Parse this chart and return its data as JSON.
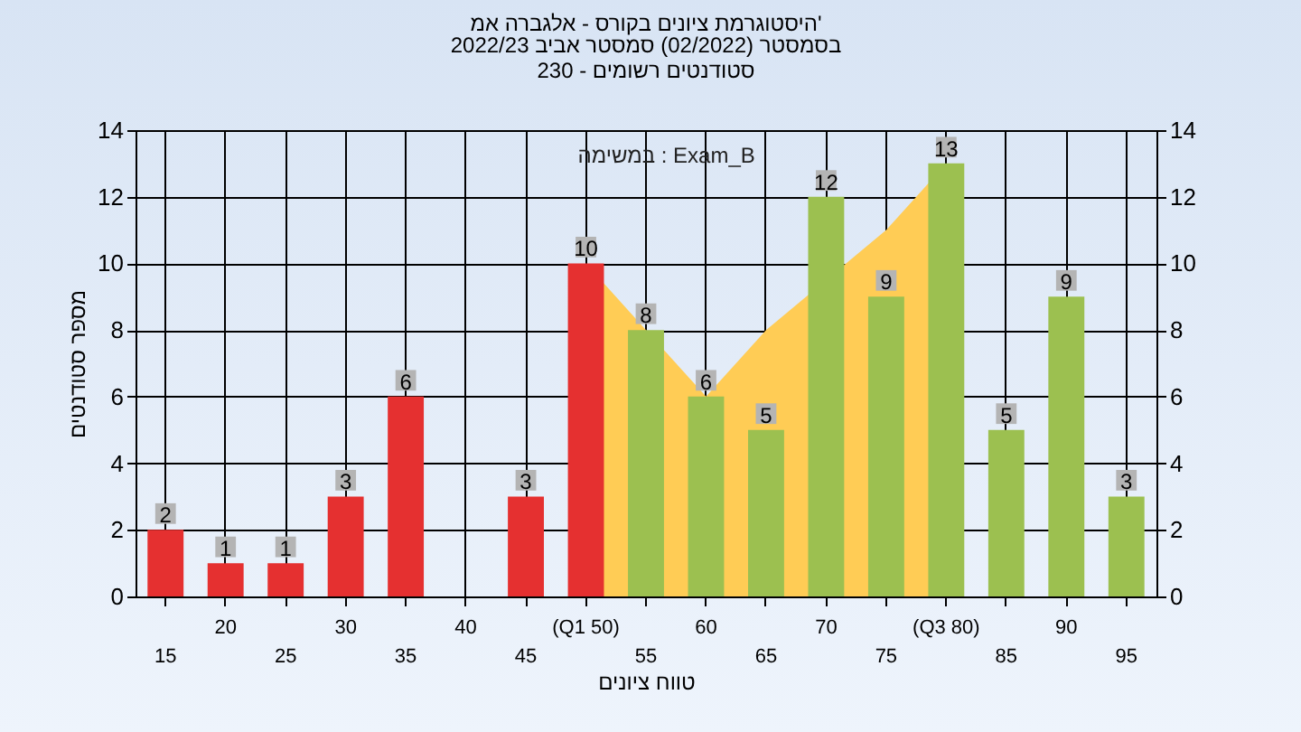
{
  "chart_data": {
    "type": "bar",
    "title": "היסטוגרמת ציונים בקורס - אלגברה אמ'",
    "subtitle": "בסמסטר  (02/2022)  סמסטר אביב 2022/23\nסטודנטים רשומים - 230",
    "xlabel": "טווח ציונים",
    "ylabel": "מספר סטודנטים",
    "annotations": [
      "במשימה : Exam_B"
    ],
    "categories": [
      "15",
      "20",
      "25",
      "30",
      "35",
      "40",
      "45",
      "(Q1 50)",
      "55",
      "60",
      "65",
      "70",
      "75",
      "(Q3 80)",
      "85",
      "90",
      "95"
    ],
    "series": [
      {
        "type": "area",
        "color": "#ffcc55",
        "values": [
          null,
          null,
          null,
          null,
          null,
          null,
          null,
          10,
          8,
          6,
          8,
          null,
          11,
          13,
          null,
          null,
          null
        ]
      },
      {
        "colors": [
          "#e53030",
          "#e53030",
          "#e53030",
          "#e53030",
          "#e53030",
          "#e53030",
          "#e53030",
          "#e53030",
          "#9cc050",
          "#9cc050",
          "#9cc050",
          "#9cc050",
          "#9cc050",
          "#9cc050",
          "#9cc050",
          "#9cc050",
          "#9cc050"
        ],
        "values": [
          2,
          1,
          1,
          3,
          6,
          0,
          3,
          10,
          8,
          6,
          5,
          12,
          9,
          13,
          5,
          9,
          3
        ],
        "value_labels": [
          "2",
          "1",
          "1",
          "3",
          "6",
          null,
          "3",
          "10",
          "8",
          "6",
          "5",
          "12",
          "9",
          "13",
          "5",
          "9",
          "3"
        ]
      }
    ],
    "ylim": [
      0,
      14
    ],
    "yticks": [
      0,
      2,
      4,
      6,
      8,
      10,
      12,
      14
    ],
    "y2lim": [
      0,
      14
    ],
    "y2ticks": [
      0,
      2,
      4,
      6,
      8,
      10,
      12,
      14
    ],
    "grid": true
  }
}
